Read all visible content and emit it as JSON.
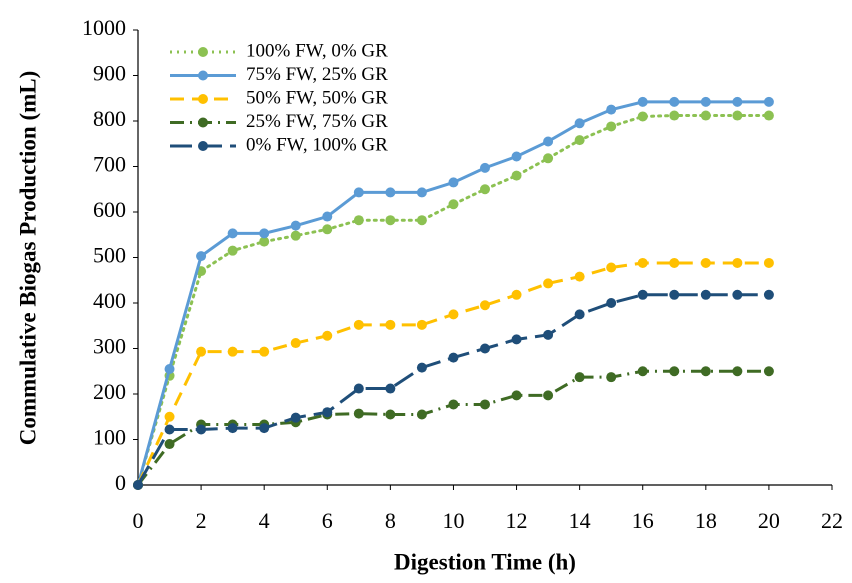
{
  "chart_data": {
    "type": "line",
    "x_label": "Digestion Time (h)",
    "y_label": "Commulative  Biogas Production (mL)",
    "x": [
      0,
      1,
      2,
      3,
      4,
      5,
      6,
      7,
      8,
      9,
      10,
      11,
      12,
      13,
      14,
      15,
      16,
      17,
      18,
      19,
      20
    ],
    "series": [
      {
        "name": "100% FW, 0% GR",
        "color": "#8cc152",
        "dash": "dotted",
        "values": [
          0,
          240,
          470,
          515,
          535,
          548,
          562,
          582,
          582,
          582,
          617,
          650,
          680,
          718,
          758,
          788,
          810,
          812,
          812,
          812,
          812
        ]
      },
      {
        "name": "75% FW, 25% GR",
        "color": "#5b9bd5",
        "dash": "solid",
        "values": [
          0,
          255,
          503,
          553,
          553,
          570,
          590,
          643,
          643,
          643,
          665,
          697,
          722,
          755,
          795,
          825,
          842,
          842,
          842,
          842,
          842
        ]
      },
      {
        "name": "50% FW, 50% GR",
        "color": "#ffc000",
        "dash": "dashed",
        "values": [
          0,
          150,
          293,
          293,
          293,
          312,
          328,
          352,
          352,
          352,
          375,
          395,
          418,
          443,
          458,
          478,
          488,
          488,
          488,
          488,
          488
        ]
      },
      {
        "name": "25% FW, 75% GR",
        "color": "#3f6b24",
        "dash": "dashdot",
        "values": [
          0,
          90,
          133,
          133,
          133,
          138,
          155,
          157,
          155,
          155,
          177,
          177,
          197,
          197,
          237,
          237,
          250,
          250,
          250,
          250,
          250
        ]
      },
      {
        "name": "0% FW, 100% GR",
        "color": "#1f4e79",
        "dash": "longdash",
        "values": [
          0,
          122,
          122,
          125,
          125,
          148,
          160,
          212,
          212,
          258,
          280,
          300,
          320,
          330,
          375,
          400,
          418,
          418,
          418,
          418,
          418
        ]
      }
    ],
    "xlim": [
      0,
      22
    ],
    "xticks": [
      0,
      2,
      4,
      6,
      8,
      10,
      12,
      14,
      16,
      18,
      20,
      22
    ],
    "ylim": [
      0,
      1000
    ],
    "yticks": [
      0,
      100,
      200,
      300,
      400,
      500,
      600,
      700,
      800,
      900,
      1000
    ],
    "grid": false,
    "legend": "top-left"
  }
}
